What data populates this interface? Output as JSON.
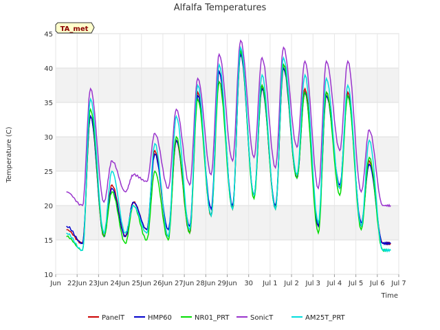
{
  "chart_data": {
    "type": "line",
    "title": "Alfalfa Temperatures",
    "xlabel": "Time",
    "ylabel": "Temperature (C)",
    "ylim": [
      10,
      45
    ],
    "xlim": [
      "2024-06-21",
      "2024-07-07"
    ],
    "grid": true,
    "legend_position": "bottom",
    "badge": "TA_met",
    "x_ticks": [
      "Jun 21",
      "Jun 22",
      "Jun 23",
      "Jun 24",
      "Jun 25",
      "Jun 26",
      "Jun 27",
      "Jun 28",
      "Jun 29",
      "Jun 30",
      "Jul 1",
      "Jul 2",
      "Jul 3",
      "Jul 4",
      "Jul 5",
      "Jul 6",
      "Jul 7"
    ],
    "x_tick_labels": [
      "Jun",
      "22Jun",
      "23Jun",
      "24Jun",
      "25Jun",
      "26Jun",
      "27Jun",
      "28Jun",
      "29Jun",
      "30",
      "Jul 1",
      "Jul 2",
      "Jul 3",
      "Jul 4",
      "Jul 5",
      "Jul 6",
      "Jul 7"
    ],
    "y_ticks": [
      10,
      15,
      20,
      25,
      30,
      35,
      40,
      45
    ],
    "x": [
      "2024-06-21 12:00",
      "2024-06-22 06:00",
      "2024-06-22 15:00",
      "2024-06-23 06:00",
      "2024-06-23 15:00",
      "2024-06-24 06:00",
      "2024-06-24 15:00",
      "2024-06-25 06:00",
      "2024-06-25 15:00",
      "2024-06-26 06:00",
      "2024-06-26 15:00",
      "2024-06-27 06:00",
      "2024-06-27 15:00",
      "2024-06-28 06:00",
      "2024-06-28 15:00",
      "2024-06-29 06:00",
      "2024-06-29 15:00",
      "2024-06-30 06:00",
      "2024-06-30 15:00",
      "2024-07-01 06:00",
      "2024-07-01 15:00",
      "2024-07-02 06:00",
      "2024-07-02 15:00",
      "2024-07-03 06:00",
      "2024-07-03 15:00",
      "2024-07-04 06:00",
      "2024-07-04 15:00",
      "2024-07-05 06:00",
      "2024-07-05 15:00",
      "2024-07-06 06:00",
      "2024-07-06 15:00"
    ],
    "series": [
      {
        "name": "PanelT",
        "color": "#cc0000",
        "values": [
          16.5,
          14.5,
          33.0,
          15.5,
          23.0,
          15.5,
          20.5,
          16.5,
          28.0,
          15.5,
          29.5,
          16.0,
          36.5,
          18.5,
          39.5,
          19.5,
          42.5,
          21.5,
          37.5,
          19.5,
          40.5,
          24.0,
          37.0,
          17.0,
          36.5,
          22.5,
          36.5,
          17.0,
          26.5,
          14.5,
          14.5
        ]
      },
      {
        "name": "HMP60",
        "color": "#0000cc",
        "values": [
          17.0,
          14.5,
          33.0,
          15.5,
          22.5,
          15.5,
          20.5,
          16.5,
          27.5,
          16.5,
          29.5,
          17.0,
          36.0,
          19.5,
          39.5,
          20.0,
          42.0,
          21.5,
          37.0,
          20.0,
          40.0,
          24.0,
          36.5,
          17.0,
          36.0,
          23.0,
          36.0,
          17.5,
          26.0,
          14.5,
          14.5
        ]
      },
      {
        "name": "NR01_PRT",
        "color": "#00dd00",
        "values": [
          15.5,
          13.5,
          34.0,
          15.5,
          22.0,
          14.5,
          20.0,
          15.0,
          25.0,
          15.0,
          30.0,
          16.0,
          35.5,
          18.5,
          38.0,
          19.5,
          42.5,
          21.0,
          37.5,
          19.5,
          40.5,
          24.0,
          36.5,
          16.0,
          36.5,
          21.5,
          36.0,
          16.5,
          27.0,
          13.5,
          13.5
        ]
      },
      {
        "name": "SonicT",
        "color": "#9933cc",
        "values": [
          22.0,
          20.0,
          37.0,
          20.5,
          26.5,
          22.0,
          24.5,
          23.5,
          30.5,
          22.5,
          34.0,
          23.0,
          38.5,
          24.5,
          42.0,
          26.5,
          44.0,
          27.0,
          41.5,
          25.5,
          43.0,
          28.5,
          41.0,
          22.5,
          41.0,
          28.0,
          41.0,
          22.0,
          31.0,
          20.0,
          20.0
        ]
      },
      {
        "name": "AM25T_PRT",
        "color": "#00dddd",
        "values": [
          16.0,
          13.5,
          35.5,
          16.0,
          25.0,
          16.0,
          20.0,
          16.0,
          29.0,
          15.5,
          33.0,
          16.5,
          37.5,
          18.5,
          40.5,
          19.5,
          43.0,
          21.5,
          39.0,
          19.5,
          41.5,
          24.5,
          39.0,
          17.5,
          38.5,
          22.5,
          37.5,
          17.0,
          29.5,
          13.5,
          13.5
        ]
      }
    ]
  }
}
